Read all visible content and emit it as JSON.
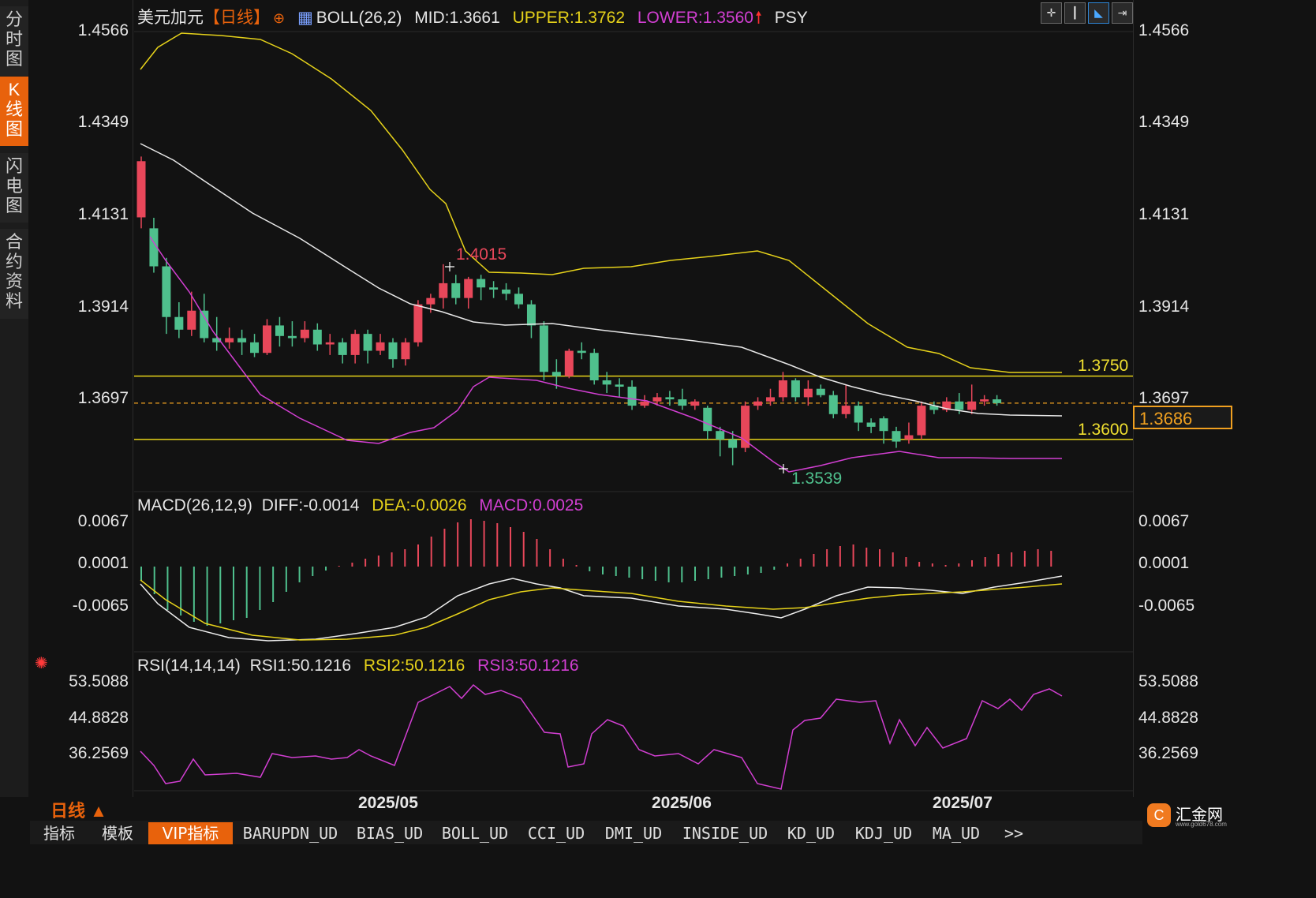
{
  "side_tabs": [
    "分时图",
    "K线图",
    "闪电图",
    "合约资料"
  ],
  "active_side_tab": "K线图",
  "main_legend": {
    "symbol": "美元加元",
    "period": "【日线】",
    "indicator": "BOLL(26,2)",
    "mid": "MID:1.3661",
    "upper": "UPPER:1.3762",
    "lower": "LOWER:1.3560",
    "extra": "PSY"
  },
  "price_axis": [
    "1.4566",
    "1.4349",
    "1.4131",
    "1.3914",
    "1.3697"
  ],
  "price_tag": "1.3686",
  "levels": [
    "1.3750",
    "1.3600"
  ],
  "high_marker": "1.4015",
  "low_marker": "1.3539",
  "macd_legend": {
    "name": "MACD(26,12,9)",
    "diff": "DIFF:-0.0014",
    "dea": "DEA:-0.0026",
    "macd": "MACD:0.0025"
  },
  "macd_axis": [
    "0.0067",
    "0.0001",
    "-0.0065"
  ],
  "rsi_legend": {
    "name": "RSI(14,14,14)",
    "rsi1": "RSI1:50.1216",
    "rsi2": "RSI2:50.1216",
    "rsi3": "RSI3:50.1216"
  },
  "rsi_axis": [
    "53.5088",
    "44.8828",
    "36.2569"
  ],
  "date_labels": [
    "2025/05",
    "2025/06",
    "2025/07"
  ],
  "period_selector": "日线 ▲",
  "bottom_tabs": [
    "指标",
    "模板",
    "VIP指标",
    "BARUPDN_UD",
    "BIAS_UD",
    "BOLL_UD",
    "CCI_UD",
    "DMI_UD",
    "INSIDE_UD",
    "KD_UD",
    "KDJ_UD",
    "MA_UD",
    ">>"
  ],
  "logo_text": "汇金网",
  "logo_url": "www.gold678.com",
  "colors": {
    "up": "#e8475a",
    "down": "#4fc08d",
    "upper": "#e6d21a",
    "lower": "#d23fd2",
    "mid": "#e8e8e8",
    "accent": "#e8620c"
  }
}
